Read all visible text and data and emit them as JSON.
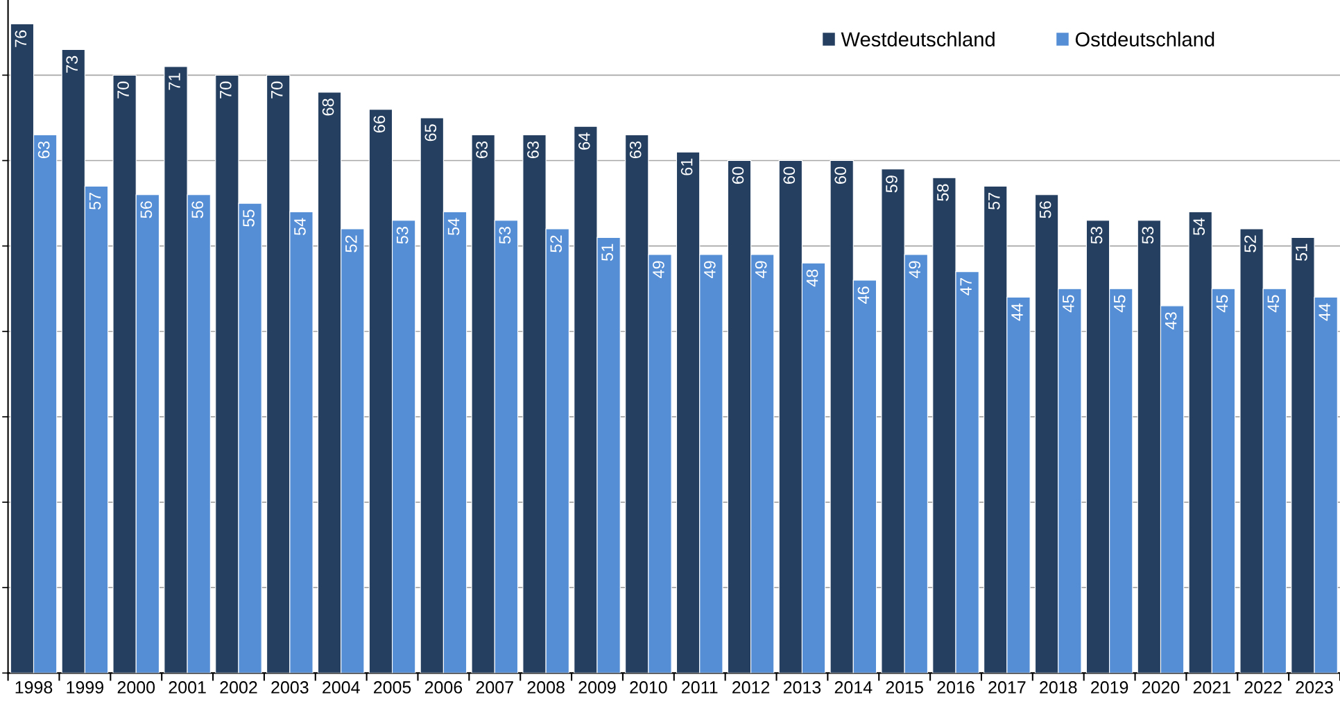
{
  "chart_data": {
    "type": "bar",
    "categories": [
      "1998",
      "1999",
      "2000",
      "2001",
      "2002",
      "2003",
      "2004",
      "2005",
      "2006",
      "2007",
      "2008",
      "2009",
      "2010",
      "2011",
      "2012",
      "2013",
      "2014",
      "2015",
      "2016",
      "2017",
      "2018",
      "2019",
      "2020",
      "2021",
      "2022",
      "2023"
    ],
    "series": [
      {
        "name": "Westdeutschland",
        "color": "#243f60",
        "values": [
          76,
          73,
          70,
          71,
          70,
          70,
          68,
          66,
          65,
          63,
          63,
          64,
          63,
          61,
          60,
          60,
          60,
          59,
          58,
          57,
          56,
          53,
          53,
          54,
          52,
          51
        ]
      },
      {
        "name": "Ostdeutschland",
        "color": "#558ed5",
        "values": [
          63,
          57,
          56,
          56,
          55,
          54,
          52,
          53,
          54,
          53,
          52,
          51,
          49,
          49,
          49,
          48,
          46,
          49,
          47,
          44,
          45,
          45,
          43,
          45,
          45,
          44
        ]
      }
    ],
    "ylim": [
      0,
      78.8
    ],
    "yticks": [
      {
        "value": 0,
        "label": null
      },
      {
        "value": 10,
        "label": null
      },
      {
        "value": 20,
        "label": null
      },
      {
        "value": 30,
        "label": null
      },
      {
        "value": 40,
        "label": null
      },
      {
        "value": 50,
        "label": null
      },
      {
        "value": 60,
        "label": null
      },
      {
        "value": 70,
        "label": null
      }
    ],
    "grid": "y",
    "legend": "top right",
    "data_labels": true
  }
}
